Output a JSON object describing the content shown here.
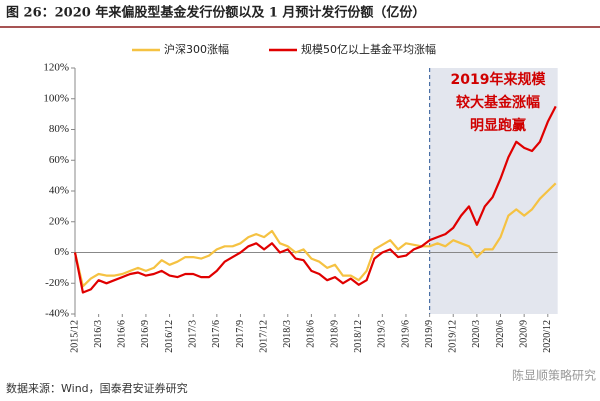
{
  "chart_data": {
    "type": "line",
    "title": "图 26：2020 年来偏股型基金发行份额以及 1 月预计发行份额（亿份）",
    "categories": [
      "2015/12",
      null,
      null,
      "2016/3",
      null,
      null,
      "2016/6",
      null,
      null,
      "2016/9",
      null,
      null,
      "2016/12",
      null,
      null,
      "2017/3",
      null,
      null,
      "2017/6",
      null,
      null,
      "2017/9",
      null,
      null,
      "2017/12",
      null,
      null,
      "2018/3",
      null,
      null,
      "2018/6",
      null,
      null,
      "2018/9",
      null,
      null,
      "2018/12",
      null,
      null,
      "2019/3",
      null,
      null,
      "2019/6",
      null,
      null,
      "2019/9",
      null,
      null,
      "2019/12",
      null,
      null,
      "2020/3",
      null,
      null,
      "2020/6",
      null,
      null,
      "2020/9",
      null,
      null,
      "2020/12",
      null
    ],
    "series": [
      {
        "name": "沪深300涨幅",
        "color": "#f5c242",
        "values": [
          0,
          -22,
          -17,
          -14,
          -15,
          -15,
          -14,
          -12,
          -10,
          -12,
          -10,
          -5,
          -8,
          -6,
          -3,
          -3,
          -4,
          -2,
          2,
          4,
          4,
          6,
          10,
          12,
          10,
          14,
          6,
          4,
          0,
          2,
          -4,
          -6,
          -10,
          -8,
          -15,
          -15,
          -18,
          -12,
          2,
          5,
          8,
          2,
          6,
          5,
          4,
          4,
          6,
          4,
          8,
          6,
          4,
          -3,
          2,
          2,
          10,
          24,
          28,
          24,
          28,
          35,
          40,
          45
        ]
      },
      {
        "name": "规模50亿以上基金平均涨幅",
        "color": "#e00000",
        "values": [
          0,
          -26,
          -24,
          -18,
          -20,
          -18,
          -16,
          -14,
          -13,
          -15,
          -14,
          -12,
          -15,
          -16,
          -14,
          -14,
          -16,
          -16,
          -12,
          -6,
          -3,
          0,
          4,
          6,
          2,
          6,
          0,
          2,
          -4,
          -5,
          -12,
          -14,
          -18,
          -16,
          -20,
          -17,
          -21,
          -18,
          -4,
          0,
          2,
          -3,
          -2,
          2,
          4,
          8,
          10,
          12,
          16,
          24,
          30,
          18,
          30,
          36,
          48,
          62,
          72,
          68,
          66,
          72,
          85,
          95
        ]
      }
    ],
    "ylim": [
      -40,
      120
    ],
    "yticks": [
      {
        "value": -40,
        "label": "-40%"
      },
      {
        "value": -20,
        "label": "-20%"
      },
      {
        "value": 0,
        "label": "0%"
      },
      {
        "value": 20,
        "label": "20%"
      },
      {
        "value": 40,
        "label": "40%"
      },
      {
        "value": 60,
        "label": "60%"
      },
      {
        "value": 80,
        "label": "80%"
      },
      {
        "value": 100,
        "label": "100%"
      },
      {
        "value": 120,
        "label": "120%"
      }
    ],
    "annotation": [
      "2019年来规模",
      "较大基金涨幅",
      "明显跑赢"
    ],
    "source": "数据来源：Wind，国泰君安证券研究",
    "watermark": "陈显顺策略研究",
    "legend": "top"
  }
}
